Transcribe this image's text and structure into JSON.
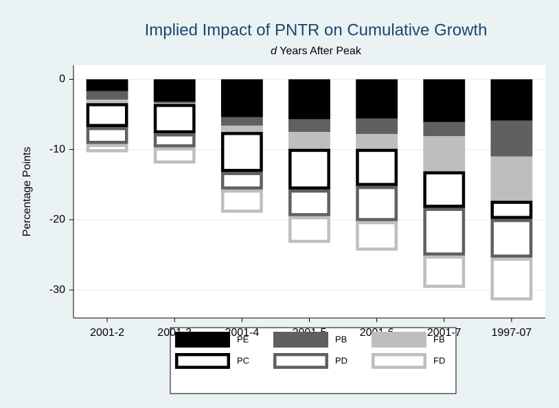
{
  "chart_data": {
    "type": "stacked_bar",
    "title": "Implied Impact of PNTR on Cumulative Growth",
    "subtitle_italic": "d",
    "subtitle": "Years After Peak",
    "ylabel": "Percentage Points",
    "categories": [
      "2001-2",
      "2001-3",
      "2001-4",
      "2001-5",
      "2001-6",
      "2001-7",
      "1997-07"
    ],
    "series": [
      {
        "name": "PE",
        "color": "#000000",
        "style": "filled",
        "values": [
          -1.7,
          -3.2,
          -5.4,
          -5.7,
          -5.6,
          -6.1,
          -5.9
        ]
      },
      {
        "name": "PB",
        "color": "#606060",
        "style": "filled",
        "values": [
          -1.2,
          -0.2,
          -1.2,
          -1.8,
          -2.2,
          -2.0,
          -5.1
        ]
      },
      {
        "name": "FB",
        "color": "#bebebe",
        "style": "filled",
        "values": [
          -0.5,
          -0.1,
          -0.9,
          -2.4,
          -2.1,
          -5.0,
          -6.3
        ]
      },
      {
        "name": "PC",
        "color": "#000000",
        "style": "outline",
        "values": [
          -3.4,
          -4.2,
          -5.7,
          -5.8,
          -5.3,
          -5.2,
          -2.6
        ]
      },
      {
        "name": "PD",
        "color": "#606060",
        "style": "outline",
        "values": [
          -2.4,
          -2.0,
          -2.5,
          -3.8,
          -5.0,
          -6.8,
          -5.5
        ]
      },
      {
        "name": "FD",
        "color": "#bebebe",
        "style": "outline",
        "values": [
          -1.2,
          -2.3,
          -3.3,
          -3.8,
          -4.2,
          -4.6,
          -6.1
        ]
      }
    ],
    "ylim": [
      -34,
      2
    ],
    "yticks": [
      0,
      -10,
      -20,
      -30
    ],
    "grid": true
  }
}
